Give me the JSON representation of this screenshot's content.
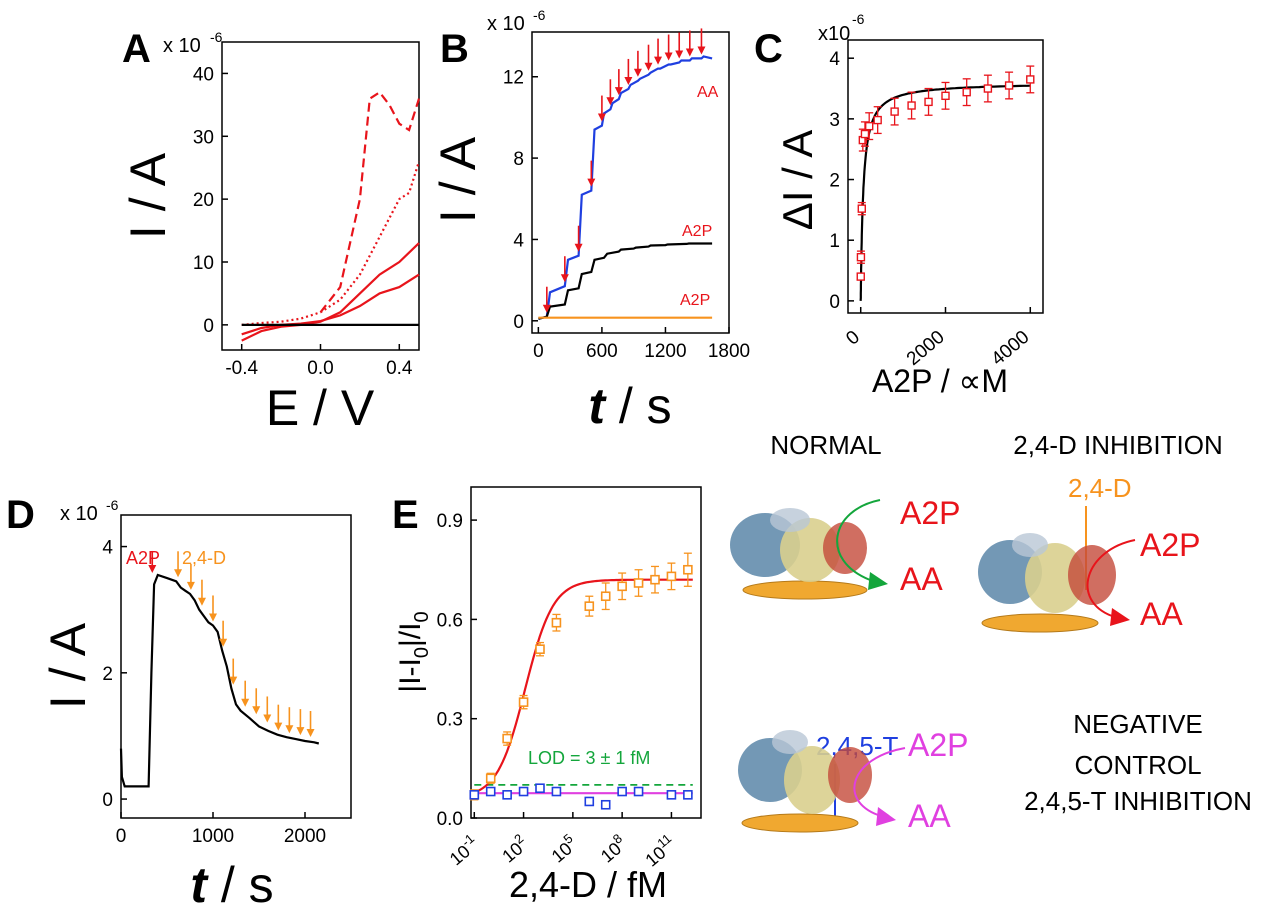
{
  "chart_data": [
    {
      "id": "A",
      "type": "line",
      "panel_label": "A",
      "multiplier": "x 10",
      "multiplier_exp": "-6",
      "xlabel": "E / V",
      "ylabel": "I / A",
      "xlim": [
        -0.5,
        0.5
      ],
      "ylim": [
        -4,
        45
      ],
      "xticks": [
        -0.4,
        0.0,
        0.4
      ],
      "xtick_labels": [
        "-0.4",
        "0.0",
        "0.4"
      ],
      "yticks": [
        0,
        10,
        20,
        30,
        40
      ],
      "ytick_labels": [
        "0",
        "10",
        "20",
        "30",
        "40"
      ],
      "series": [
        {
          "style": "dashed",
          "color": "#e8141b",
          "x": [
            0.0,
            0.1,
            0.2,
            0.25,
            0.3,
            0.35,
            0.4,
            0.45,
            0.5
          ],
          "y": [
            2,
            6,
            20,
            36,
            37,
            35,
            32,
            31,
            36
          ]
        },
        {
          "style": "dotted",
          "color": "#e8141b",
          "x": [
            -0.4,
            -0.3,
            -0.2,
            -0.1,
            0.0,
            0.1,
            0.2,
            0.3,
            0.4,
            0.45,
            0.5
          ],
          "y": [
            0,
            0.3,
            0.5,
            1,
            2,
            4,
            8,
            14,
            20,
            21,
            26
          ]
        },
        {
          "style": "solid",
          "color": "#e8141b",
          "x": [
            -0.4,
            -0.3,
            -0.2,
            -0.1,
            0.0,
            0.1,
            0.2,
            0.3,
            0.4,
            0.5
          ],
          "y": [
            -2.5,
            -1,
            -0.3,
            0,
            0.5,
            2,
            5,
            8,
            10,
            13
          ]
        },
        {
          "style": "solid",
          "color": "#e8141b",
          "x": [
            -0.4,
            -0.3,
            -0.2,
            -0.1,
            0.0,
            0.1,
            0.2,
            0.3,
            0.4,
            0.5
          ],
          "y": [
            -1.5,
            -0.5,
            0,
            0.2,
            0.6,
            1.5,
            3,
            5,
            6,
            8
          ]
        },
        {
          "style": "solid",
          "color": "#000000",
          "x": [
            -0.4,
            0.5
          ],
          "y": [
            0,
            0
          ]
        }
      ]
    },
    {
      "id": "B",
      "type": "line",
      "panel_label": "B",
      "multiplier": "x 10",
      "multiplier_exp": "-6",
      "xlabel": "t / s",
      "xlabel_italic": "t",
      "xlabel_rest": " / s",
      "ylabel": "I / A",
      "xlim": [
        -60,
        1800
      ],
      "ylim": [
        -0.6,
        14.2
      ],
      "xticks": [
        0,
        600,
        1200,
        1800
      ],
      "xtick_labels": [
        "0",
        "600",
        "1200",
        "1800"
      ],
      "yticks": [
        0,
        4,
        8,
        12
      ],
      "ytick_labels": [
        "0",
        "4",
        "8",
        "12"
      ],
      "series": [
        {
          "name": "AA",
          "color": "#1f3fe0",
          "x": [
            0,
            80,
            110,
            250,
            280,
            380,
            410,
            500,
            530,
            600,
            620,
            680,
            700,
            760,
            780,
            850,
            870,
            940,
            960,
            1040,
            1060,
            1130,
            1150,
            1230,
            1250,
            1330,
            1350,
            1430,
            1450,
            1540,
            1560,
            1640
          ],
          "y": [
            0.1,
            0.2,
            1.4,
            1.7,
            3.0,
            3.2,
            6.2,
            6.4,
            9.4,
            9.6,
            10.2,
            10.4,
            10.7,
            10.9,
            11.2,
            11.4,
            11.6,
            11.8,
            11.9,
            12.1,
            12.2,
            12.4,
            12.4,
            12.6,
            12.6,
            12.7,
            12.8,
            12.8,
            12.9,
            12.9,
            13.0,
            12.9
          ]
        },
        {
          "name": "A2P",
          "color": "#000000",
          "x": [
            0,
            80,
            110,
            250,
            280,
            380,
            410,
            500,
            530,
            620,
            650,
            760,
            780,
            900,
            920,
            1040,
            1060,
            1200,
            1220,
            1400,
            1420,
            1640
          ],
          "y": [
            0.1,
            0.2,
            0.7,
            0.8,
            1.5,
            1.6,
            2.3,
            2.4,
            3.0,
            3.1,
            3.3,
            3.4,
            3.5,
            3.55,
            3.6,
            3.65,
            3.7,
            3.72,
            3.75,
            3.78,
            3.8,
            3.8
          ]
        },
        {
          "name": "A2P",
          "color": "#f7931e",
          "x": [
            0,
            1640
          ],
          "y": [
            0.15,
            0.15
          ]
        }
      ],
      "arrows_x": [
        80,
        250,
        380,
        500,
        600,
        680,
        760,
        850,
        940,
        1040,
        1130,
        1230,
        1330,
        1430,
        1540
      ],
      "annotations": [
        "AA",
        "A2P",
        "A2P"
      ]
    },
    {
      "id": "C",
      "type": "scatter",
      "panel_label": "C",
      "multiplier": "x10",
      "multiplier_exp": "-6",
      "xlabel": "A2P / ∝M",
      "ylabel": "ΔI / A",
      "xlim": [
        -300,
        4300
      ],
      "ylim": [
        -0.2,
        4.3
      ],
      "xticks": [
        0,
        2000,
        4000
      ],
      "xtick_labels": [
        "0",
        "2000",
        "4000"
      ],
      "yticks": [
        0,
        1,
        2,
        3,
        4
      ],
      "ytick_labels": [
        "0",
        "1",
        "2",
        "3",
        "4"
      ],
      "points": {
        "x": [
          1,
          5,
          25,
          50,
          100,
          200,
          400,
          800,
          1200,
          1600,
          2000,
          2500,
          3000,
          3500,
          4000
        ],
        "y": [
          0.4,
          0.72,
          1.52,
          2.65,
          2.75,
          2.88,
          2.98,
          3.12,
          3.22,
          3.28,
          3.38,
          3.44,
          3.5,
          3.55,
          3.65
        ],
        "err": [
          0.05,
          0.1,
          0.1,
          0.18,
          0.2,
          0.22,
          0.22,
          0.22,
          0.22,
          0.22,
          0.22,
          0.22,
          0.22,
          0.22,
          0.22
        ]
      },
      "fit": {
        "type": "michaelis-menten",
        "vmax": 3.6,
        "km": 60
      }
    },
    {
      "id": "D",
      "type": "line",
      "panel_label": "D",
      "multiplier": "x 10",
      "multiplier_exp": "-6",
      "xlabel": "t / s",
      "xlabel_italic": "t",
      "xlabel_rest": " / s",
      "ylabel": "I / A",
      "xlim": [
        0,
        2500
      ],
      "ylim": [
        -0.3,
        4.5
      ],
      "xticks": [
        0,
        1000,
        2000
      ],
      "xtick_labels": [
        "0",
        "1000",
        "2000"
      ],
      "yticks": [
        0,
        2,
        4
      ],
      "ytick_labels": [
        "0",
        "2",
        "4"
      ],
      "series": [
        {
          "color": "#000000",
          "x": [
            0,
            10,
            40,
            300,
            330,
            360,
            400,
            500,
            600,
            650,
            700,
            750,
            800,
            850,
            900,
            950,
            1000,
            1050,
            1100,
            1150,
            1200,
            1250,
            1300,
            1400,
            1500,
            1600,
            1700,
            1800,
            1900,
            2000,
            2100,
            2150
          ],
          "y": [
            0.8,
            0.35,
            0.2,
            0.2,
            2.0,
            3.4,
            3.55,
            3.5,
            3.45,
            3.35,
            3.3,
            3.25,
            3.15,
            3.0,
            2.9,
            2.8,
            2.75,
            2.65,
            2.35,
            2.1,
            1.75,
            1.5,
            1.4,
            1.28,
            1.15,
            1.08,
            1.02,
            0.98,
            0.95,
            0.92,
            0.9,
            0.88
          ]
        }
      ],
      "arrow_a2p_x": 340,
      "arrows_24d_x": [
        620,
        760,
        880,
        1000,
        1110,
        1220,
        1350,
        1470,
        1590,
        1710,
        1830,
        1950,
        2060
      ],
      "annotation_a2p": "A2P",
      "annotation_24d": "2,4-D"
    },
    {
      "id": "E",
      "type": "scatter",
      "panel_label": "E",
      "xscale": "log",
      "xlabel": "2,4-D / fM",
      "ylabel": "|I-I0|/I0",
      "ylabel_parts": [
        "|I-I",
        "0",
        "|/I",
        "0"
      ],
      "xlim_log10": [
        -1.2,
        12.8
      ],
      "ylim": [
        0,
        1.0
      ],
      "xticks_log10": [
        -1,
        2,
        5,
        8,
        11
      ],
      "xtick_bases": [
        "10",
        "10",
        "10",
        "10",
        "10"
      ],
      "xtick_exps": [
        "-1",
        "2",
        "5",
        "8",
        "11"
      ],
      "yticks": [
        0.0,
        0.3,
        0.6,
        0.9
      ],
      "ytick_labels": [
        "0.0",
        "0.3",
        "0.6",
        "0.9"
      ],
      "lod_label": "LOD = 3 ± 1 fM",
      "lod_y": 0.1,
      "series": [
        {
          "name": "2,4-D",
          "color": "#f7931e",
          "fit_color": "#e8141b",
          "x_log10": [
            -1,
            0,
            1,
            2,
            3,
            4,
            6,
            7,
            8,
            9,
            10,
            11,
            12
          ],
          "y": [
            0.07,
            0.12,
            0.24,
            0.35,
            0.51,
            0.59,
            0.64,
            0.67,
            0.7,
            0.71,
            0.72,
            0.73,
            0.75
          ],
          "err": [
            0.015,
            0.015,
            0.02,
            0.02,
            0.02,
            0.025,
            0.03,
            0.04,
            0.04,
            0.04,
            0.04,
            0.04,
            0.05
          ]
        },
        {
          "name": "2,4,5-T",
          "color": "#1f3fe0",
          "fit_color": "#e040e0",
          "x_log10": [
            -1,
            0,
            1,
            2,
            3,
            4,
            6,
            7,
            8,
            9,
            11,
            12
          ],
          "y": [
            0.07,
            0.08,
            0.07,
            0.08,
            0.09,
            0.08,
            0.05,
            0.04,
            0.08,
            0.08,
            0.07,
            0.07
          ],
          "err": [
            0.01,
            0.01,
            0.01,
            0.01,
            0.01,
            0.01,
            0.01,
            0.01,
            0.01,
            0.01,
            0.01,
            0.01
          ]
        }
      ]
    }
  ],
  "schematics": {
    "normal": {
      "title": "NORMAL",
      "substrate": "A2P",
      "product": "AA"
    },
    "inhibition": {
      "title": "2,4-D INHIBITION",
      "inhibitor": "2,4-D",
      "substrate": "A2P",
      "product": "AA"
    },
    "negative": {
      "title_line1": "NEGATIVE",
      "title_line2": "CONTROL",
      "title_line3": "2,4,5-T INHIBITION",
      "inhibitor": "2,4,5-T",
      "substrate": "A2P",
      "product": "AA"
    }
  },
  "colors": {
    "red": "#e8141b",
    "orange": "#f7931e",
    "blue": "#1f3fe0",
    "green": "#14a63c",
    "magenta": "#e040e0",
    "disc": "#f0a830"
  }
}
